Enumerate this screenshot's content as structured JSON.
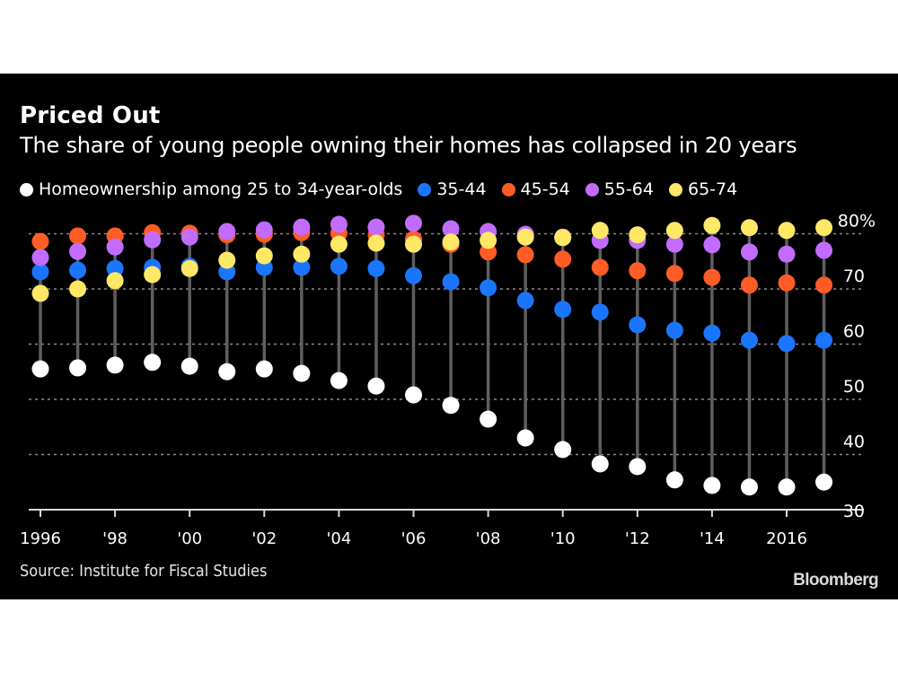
{
  "header": {
    "title": "Priced Out",
    "subtitle": "The share of young people owning their homes has collapsed in 20 years"
  },
  "footer": {
    "source": "Source: Institute for Fiscal Studies",
    "brand": "Bloomberg"
  },
  "chart_data": {
    "type": "scatter",
    "style": "dot-plot with vertical range stems per year",
    "title": "Priced Out",
    "subtitle": "The share of young people owning their homes has collapsed in 20 years",
    "xlabel": "",
    "ylabel": "",
    "x": [
      1996,
      1997,
      1998,
      1999,
      2000,
      2001,
      2002,
      2003,
      2004,
      2005,
      2006,
      2007,
      2008,
      2009,
      2010,
      2011,
      2012,
      2013,
      2014,
      2015,
      2016,
      2017
    ],
    "x_ticks": [
      1996,
      1998,
      2000,
      2002,
      2004,
      2006,
      2008,
      2010,
      2012,
      2014,
      2016
    ],
    "x_tick_labels": [
      "1996",
      "'98",
      "'00",
      "'02",
      "'04",
      "'06",
      "'08",
      "'10",
      "'12",
      "'14",
      "2016"
    ],
    "y_ticks": [
      30,
      40,
      50,
      60,
      70,
      80
    ],
    "y_tick_labels": [
      "30",
      "40",
      "50",
      "60",
      "70",
      "80%"
    ],
    "ylim": [
      30,
      83
    ],
    "grid": "horizontal dotted",
    "legend_position": "top-left",
    "series": [
      {
        "name": "Homeownership among 25 to 34-year-olds",
        "color": "#ffffff",
        "values": [
          55.5,
          55.7,
          56.2,
          56.7,
          56.0,
          55.0,
          55.5,
          54.7,
          53.4,
          52.4,
          50.8,
          48.9,
          46.4,
          43.0,
          40.9,
          38.3,
          37.8,
          35.4,
          34.4,
          34.1,
          34.1,
          35.0
        ]
      },
      {
        "name": "35-44",
        "color": "#1a75ff",
        "values": [
          73.1,
          73.4,
          73.7,
          73.9,
          74.1,
          73.1,
          73.9,
          73.9,
          74.1,
          73.7,
          72.4,
          71.3,
          70.2,
          67.9,
          66.3,
          65.8,
          63.5,
          62.5,
          62.0,
          60.7,
          60.1,
          60.7
        ]
      },
      {
        "name": "45-54",
        "color": "#ff5c26",
        "values": [
          78.6,
          79.6,
          79.6,
          80.2,
          80.1,
          79.8,
          79.9,
          80.2,
          80.1,
          79.8,
          79.0,
          78.1,
          76.7,
          76.2,
          75.4,
          73.9,
          73.3,
          72.8,
          72.1,
          70.7,
          71.1,
          70.7
        ]
      },
      {
        "name": "55-64",
        "color": "#c26cff",
        "values": [
          75.7,
          76.8,
          77.6,
          78.9,
          79.4,
          80.4,
          80.7,
          81.2,
          81.7,
          81.2,
          81.9,
          80.9,
          80.4,
          79.9,
          79.4,
          78.8,
          78.8,
          78.1,
          78.0,
          76.7,
          76.3,
          77.0
        ]
      },
      {
        "name": "65-74",
        "color": "#ffe866",
        "values": [
          69.2,
          70.0,
          71.5,
          72.6,
          73.7,
          75.2,
          76.0,
          76.3,
          78.1,
          78.3,
          78.1,
          78.5,
          78.8,
          79.4,
          79.3,
          80.6,
          79.8,
          80.6,
          81.5,
          81.1,
          80.6,
          81.1
        ]
      }
    ],
    "stem_color": "#5f5f5f",
    "grid_color": "#8a8a8a",
    "axis_color": "#d9d9d9"
  }
}
